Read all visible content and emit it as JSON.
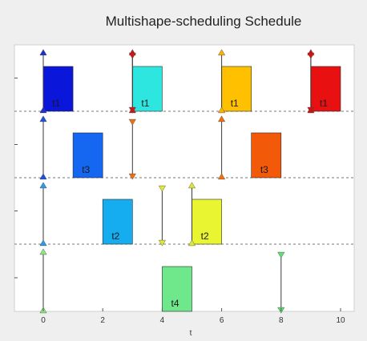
{
  "chart_data": {
    "type": "timeline",
    "title": "Multishape-scheduling Schedule",
    "xlabel": "t",
    "xlim": [
      -1,
      11
    ],
    "xticks": [
      0,
      2,
      4,
      6,
      8,
      10
    ],
    "tick_labels": [
      "0",
      "2",
      "4",
      "6",
      "8",
      "10"
    ],
    "rows": [
      {
        "tasks": [
          {
            "label": "t1",
            "start": 0,
            "end": 1,
            "color": "#0a16d9"
          },
          {
            "label": "t1",
            "start": 3,
            "end": 4,
            "color": "#2ee6e0"
          },
          {
            "label": "t1",
            "start": 6,
            "end": 7,
            "color": "#ffc000"
          },
          {
            "label": "t1",
            "start": 9,
            "end": 10,
            "color": "#e81010"
          }
        ],
        "releases": [
          {
            "t": 0,
            "color": "#1a30d0"
          },
          {
            "t": 3,
            "color": "#d01818"
          },
          {
            "t": 6,
            "color": "#ffb000"
          },
          {
            "t": 9,
            "color": "#d81010"
          }
        ],
        "deadlines": [
          {
            "t": 3,
            "color": "#d01818"
          },
          {
            "t": 9,
            "color": "#d81010"
          }
        ]
      },
      {
        "tasks": [
          {
            "label": "t3",
            "start": 1,
            "end": 2,
            "color": "#1566f0"
          },
          {
            "label": "t3",
            "start": 7,
            "end": 8,
            "color": "#f25a0a"
          }
        ],
        "releases": [
          {
            "t": 0,
            "color": "#1e4fe0"
          },
          {
            "t": 6,
            "color": "#f07010"
          }
        ],
        "deadlines": [
          {
            "t": 3,
            "color": "#f07010"
          }
        ]
      },
      {
        "tasks": [
          {
            "label": "t2",
            "start": 2,
            "end": 3,
            "color": "#15adf0"
          },
          {
            "label": "t2",
            "start": 5,
            "end": 6,
            "color": "#e8f530"
          }
        ],
        "releases": [
          {
            "t": 0,
            "color": "#2a9be8"
          },
          {
            "t": 5,
            "color": "#dfe830"
          }
        ],
        "deadlines": [
          {
            "t": 4,
            "color": "#e0e830"
          }
        ]
      },
      {
        "tasks": [
          {
            "label": "t4",
            "start": 4,
            "end": 5,
            "color": "#6ee88a"
          }
        ],
        "releases": [
          {
            "t": 0,
            "color": "#8ee880"
          }
        ],
        "deadlines": [
          {
            "t": 8,
            "color": "#60e070"
          }
        ]
      }
    ]
  }
}
